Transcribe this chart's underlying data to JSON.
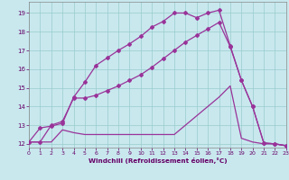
{
  "bg_color": "#c8e8ee",
  "line_color": "#993399",
  "grid_color": "#99cccc",
  "xlabel": "Windchill (Refroidissement éolien,°C)",
  "xlabel_color": "#660066",
  "tick_color": "#660066",
  "xlim": [
    0,
    23
  ],
  "ylim": [
    11.8,
    19.6
  ],
  "yticks": [
    12,
    13,
    14,
    15,
    16,
    17,
    18,
    19
  ],
  "xticks": [
    0,
    1,
    2,
    3,
    4,
    5,
    6,
    7,
    8,
    9,
    10,
    11,
    12,
    13,
    14,
    15,
    16,
    17,
    18,
    19,
    20,
    21,
    22,
    23
  ],
  "curve1_x": [
    0,
    1,
    2,
    3,
    4,
    5,
    6,
    7,
    8,
    9,
    10,
    11,
    12,
    13,
    14,
    15,
    16,
    17,
    18,
    19,
    20,
    21,
    22,
    23
  ],
  "curve1_y": [
    12.1,
    12.85,
    12.95,
    13.1,
    14.5,
    15.3,
    16.2,
    16.6,
    17.0,
    17.35,
    17.75,
    18.25,
    18.55,
    19.0,
    19.0,
    18.75,
    19.0,
    19.15,
    17.25,
    15.4,
    14.0,
    12.05,
    12.0,
    11.9
  ],
  "curve2_x": [
    0,
    1,
    2,
    3,
    4,
    5,
    6,
    7,
    8,
    9,
    10,
    11,
    12,
    13,
    14,
    15,
    16,
    17,
    18,
    19,
    20,
    21,
    22,
    23
  ],
  "curve2_y": [
    12.1,
    12.1,
    12.1,
    12.75,
    12.6,
    12.5,
    12.5,
    12.5,
    12.5,
    12.5,
    12.5,
    12.5,
    12.5,
    12.5,
    13.0,
    13.5,
    14.0,
    14.5,
    15.1,
    12.3,
    12.1,
    12.0,
    12.0,
    11.9
  ],
  "curve3_x": [
    0,
    1,
    2,
    3,
    4,
    5,
    6,
    7,
    8,
    9,
    10,
    11,
    12,
    13,
    14,
    15,
    16,
    17,
    18,
    19,
    20,
    21,
    22,
    23
  ],
  "curve3_y": [
    12.1,
    12.1,
    13.0,
    13.2,
    14.45,
    14.45,
    14.6,
    14.85,
    15.1,
    15.4,
    15.7,
    16.1,
    16.55,
    17.0,
    17.45,
    17.8,
    18.15,
    18.5,
    17.2,
    15.4,
    14.0,
    12.05,
    12.0,
    11.9
  ],
  "marker": "D",
  "markersize": 2.0,
  "linewidth": 0.9
}
